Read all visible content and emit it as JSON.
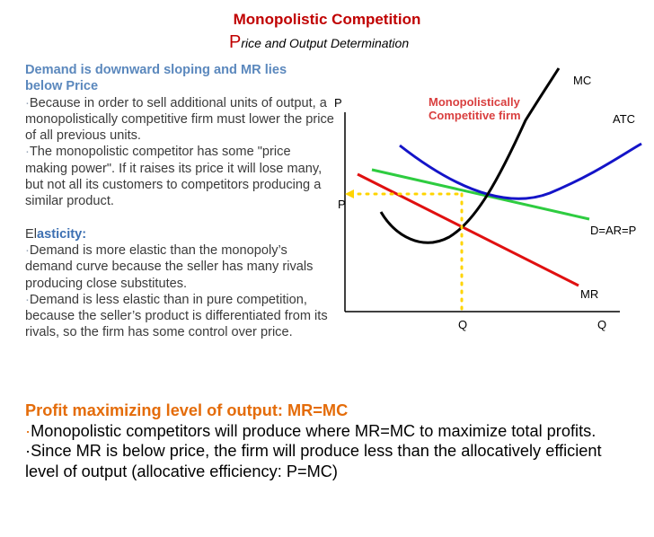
{
  "title": "Monopolistic Competition",
  "subtitle_first_letter": "P",
  "subtitle_rest": "rice and Output Determination",
  "left": {
    "heading_line1": "Demand is downward sloping and MR lies",
    "heading_line2": "below Price",
    "bullet": "·",
    "p1": "Because in order to sell additional units of output, a monopolistically competitive firm must lower the price of all previous units.",
    "p2": "The monopolistic competitor has some \"price making power\". If it raises its price it will lose many, but not all its customers to competitors producing a similar product.",
    "elasticity_prefix": "El",
    "elasticity_rest": "asticity:",
    "p3": "Demand is more elastic than the monopoly’s demand curve because the seller has many rivals producing close substitutes.",
    "p4": "Demand is less elastic than in pure competition, because the seller’s product is differentiated from its rivals, so the firm has some control over price."
  },
  "bottom": {
    "heading": "Profit maximizing level of output: MR=MC",
    "bullet": "·",
    "b1": "Monopolistic competitors will produce where MR=MC to maximize total profits.",
    "b2": "Since MR is below price, the firm will produce less than the allocatively efficient level of output (allocative efficiency: P=MC)"
  },
  "diagram": {
    "y_axis_label": "P",
    "price_label": "P",
    "x_axis_label": "Q",
    "quantity_label": "Q",
    "firm_label_line1": "Monopolistically",
    "firm_label_line2": "Competitive firm",
    "mc_label": "MC",
    "atc_label": "ATC",
    "demand_label": "D=AR=P",
    "mr_label": "MR",
    "colors": {
      "axes": "#000000",
      "mc": "#000000",
      "atc": "#1414c8",
      "demand": "#2ecc40",
      "mr": "#e01010",
      "guides": "#ffd400",
      "firm_label": "#d93f3f"
    }
  }
}
